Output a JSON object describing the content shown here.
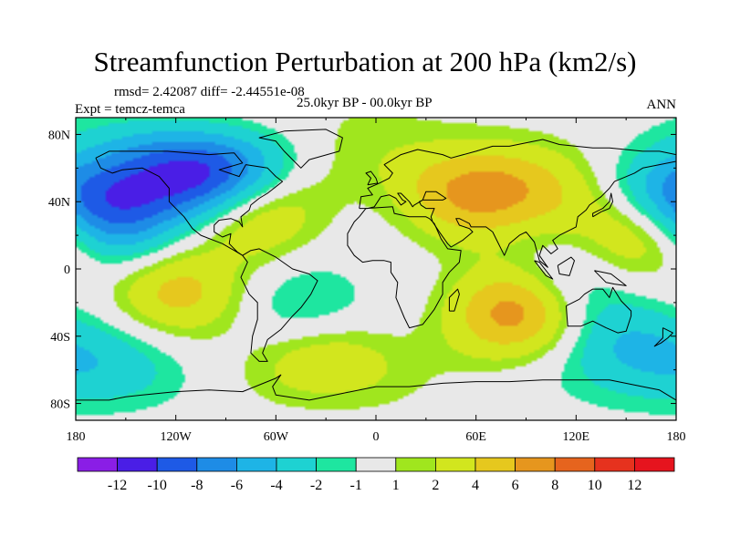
{
  "title": "Streamfunction Perturbation at 200 hPa (km2/s)",
  "stats": "rmsd= 2.42087 diff= -2.44551e-08",
  "experiment": "Expt = temcz-temca",
  "period": "25.0kyr BP - 00.0kyr BP",
  "season": "ANN",
  "axes": {
    "lat_labels": [
      "80N",
      "40N",
      "0",
      "40S",
      "80S"
    ],
    "lat_values": [
      80,
      40,
      0,
      -40,
      -80
    ],
    "lon_labels": [
      "180",
      "120W",
      "60W",
      "0",
      "60E",
      "120E",
      "180"
    ],
    "lon_values": [
      -180,
      -120,
      -60,
      0,
      60,
      120,
      180
    ],
    "lat_range": [
      -90,
      90
    ],
    "lon_range": [
      -180,
      180
    ]
  },
  "colorbar": {
    "labels": [
      "-12",
      "-10",
      "-8",
      "-6",
      "-4",
      "-2",
      "-1",
      "1",
      "2",
      "4",
      "6",
      "8",
      "10",
      "12"
    ],
    "colors": [
      "#8a1ee6",
      "#4a1ee6",
      "#1e5ae6",
      "#1e8ce6",
      "#1eb4e6",
      "#1ed2d2",
      "#1ee6a0",
      "#e8e8e8",
      "#a0e61e",
      "#d2e61e",
      "#e6c81e",
      "#e6961e",
      "#e6641e",
      "#e6321e",
      "#e6141e"
    ]
  },
  "field_features": [
    {
      "name": "north-america-low",
      "lon": -100,
      "lat": 56,
      "value": -11
    },
    {
      "name": "north-pacific-low",
      "lon": -155,
      "lat": 40,
      "value": -5
    },
    {
      "name": "west-pacific-low",
      "lon": 178,
      "lat": 42,
      "value": -5
    },
    {
      "name": "atlantic-high",
      "lon": -75,
      "lat": 34,
      "value": 5
    },
    {
      "name": "eurasia-high",
      "lon": 55,
      "lat": 45,
      "value": 6
    },
    {
      "name": "asia-high",
      "lon": 100,
      "lat": 45,
      "value": 3
    },
    {
      "name": "pacific-high",
      "lon": 160,
      "lat": 22,
      "value": 5
    },
    {
      "name": "arctic-high",
      "lon": -45,
      "lat": 78,
      "value": 2
    },
    {
      "name": "south-pacific-high",
      "lon": -120,
      "lat": -13,
      "value": 5
    },
    {
      "name": "indian-ocean-high",
      "lon": 85,
      "lat": -25,
      "value": 8
    },
    {
      "name": "south-atlantic-high",
      "lon": -30,
      "lat": -52,
      "value": 4
    },
    {
      "name": "south-atlantic-low",
      "lon": -40,
      "lat": -25,
      "value": -3
    },
    {
      "name": "west-australia-low",
      "lon": 145,
      "lat": -45,
      "value": -4
    },
    {
      "name": "east-pacific-low",
      "lon": -150,
      "lat": 22,
      "value": -3
    },
    {
      "name": "south-indian-low",
      "lon": 110,
      "lat": -10,
      "value": -3
    },
    {
      "name": "southern-ocean-low",
      "lon": -160,
      "lat": -55,
      "value": -3
    }
  ],
  "coastlines": [
    {
      "name": "north-america-coast",
      "points": [
        [
          -168,
          66
        ],
        [
          -160,
          70
        ],
        [
          -140,
          70
        ],
        [
          -125,
          70
        ],
        [
          -100,
          68
        ],
        [
          -85,
          69
        ],
        [
          -80,
          63
        ],
        [
          -94,
          59
        ],
        [
          -82,
          55
        ],
        [
          -78,
          62
        ],
        [
          -65,
          60
        ],
        [
          -60,
          55
        ],
        [
          -56,
          52
        ],
        [
          -65,
          45
        ],
        [
          -70,
          42
        ],
        [
          -75,
          38
        ],
        [
          -76,
          35
        ],
        [
          -81,
          31
        ],
        [
          -80,
          25
        ],
        [
          -82,
          28
        ],
        [
          -87,
          30
        ],
        [
          -94,
          29
        ],
        [
          -97,
          26
        ],
        [
          -97,
          22
        ],
        [
          -92,
          19
        ],
        [
          -87,
          21
        ],
        [
          -88,
          15
        ],
        [
          -83,
          10
        ],
        [
          -80,
          8
        ],
        [
          -85,
          11
        ],
        [
          -92,
          15
        ],
        [
          -105,
          20
        ],
        [
          -110,
          24
        ],
        [
          -115,
          31
        ],
        [
          -118,
          34
        ],
        [
          -124,
          40
        ],
        [
          -124,
          48
        ],
        [
          -130,
          55
        ],
        [
          -140,
          60
        ],
        [
          -152,
          59
        ],
        [
          -158,
          57
        ],
        [
          -165,
          60
        ],
        [
          -168,
          66
        ]
      ]
    },
    {
      "name": "greenland-coast",
      "points": [
        [
          -55,
          82
        ],
        [
          -30,
          83
        ],
        [
          -20,
          78
        ],
        [
          -22,
          70
        ],
        [
          -40,
          65
        ],
        [
          -45,
          60
        ],
        [
          -50,
          65
        ],
        [
          -55,
          70
        ],
        [
          -60,
          76
        ],
        [
          -70,
          78
        ],
        [
          -55,
          82
        ]
      ]
    },
    {
      "name": "south-america-coast",
      "points": [
        [
          -80,
          8
        ],
        [
          -77,
          4
        ],
        [
          -81,
          -5
        ],
        [
          -76,
          -15
        ],
        [
          -71,
          -20
        ],
        [
          -71,
          -30
        ],
        [
          -74,
          -40
        ],
        [
          -75,
          -50
        ],
        [
          -70,
          -55
        ],
        [
          -65,
          -55
        ],
        [
          -68,
          -50
        ],
        [
          -65,
          -42
        ],
        [
          -57,
          -36
        ],
        [
          -50,
          -28
        ],
        [
          -45,
          -23
        ],
        [
          -39,
          -15
        ],
        [
          -35,
          -7
        ],
        [
          -40,
          -3
        ],
        [
          -50,
          0
        ],
        [
          -60,
          7
        ],
        [
          -70,
          12
        ],
        [
          -75,
          11
        ],
        [
          -80,
          8
        ]
      ]
    },
    {
      "name": "eurasia-coast",
      "points": [
        [
          -10,
          36
        ],
        [
          -9,
          43
        ],
        [
          -2,
          44
        ],
        [
          -5,
          48
        ],
        [
          2,
          51
        ],
        [
          8,
          54
        ],
        [
          10,
          57
        ],
        [
          5,
          62
        ],
        [
          15,
          68
        ],
        [
          25,
          71
        ],
        [
          40,
          68
        ],
        [
          45,
          66
        ],
        [
          60,
          70
        ],
        [
          70,
          73
        ],
        [
          80,
          73
        ],
        [
          100,
          77
        ],
        [
          110,
          74
        ],
        [
          130,
          72
        ],
        [
          140,
          72
        ],
        [
          160,
          70
        ],
        [
          170,
          70
        ],
        [
          180,
          68
        ],
        [
          180,
          64
        ],
        [
          170,
          62
        ],
        [
          160,
          60
        ],
        [
          155,
          57
        ],
        [
          143,
          52
        ],
        [
          140,
          48
        ],
        [
          135,
          43
        ],
        [
          128,
          38
        ],
        [
          126,
          35
        ],
        [
          121,
          31
        ],
        [
          120,
          25
        ],
        [
          110,
          20
        ],
        [
          106,
          17
        ],
        [
          109,
          12
        ],
        [
          105,
          9
        ],
        [
          100,
          14
        ],
        [
          98,
          8
        ],
        [
          103,
          1
        ],
        [
          98,
          5
        ],
        [
          95,
          16
        ],
        [
          90,
          22
        ],
        [
          86,
          20
        ],
        [
          80,
          15
        ],
        [
          77,
          8
        ],
        [
          73,
          16
        ],
        [
          70,
          22
        ],
        [
          66,
          25
        ],
        [
          57,
          25
        ],
        [
          56,
          27
        ],
        [
          50,
          30
        ],
        [
          48,
          30
        ],
        [
          50,
          26
        ],
        [
          56,
          24
        ],
        [
          58,
          22
        ],
        [
          52,
          17
        ],
        [
          45,
          13
        ],
        [
          43,
          15
        ],
        [
          38,
          22
        ],
        [
          34,
          28
        ],
        [
          33,
          31
        ],
        [
          35,
          36
        ],
        [
          30,
          36
        ],
        [
          27,
          38
        ],
        [
          26,
          40
        ],
        [
          28,
          41
        ],
        [
          36,
          41
        ],
        [
          40,
          41
        ],
        [
          42,
          42
        ],
        [
          36,
          46
        ],
        [
          30,
          46
        ],
        [
          28,
          41
        ],
        [
          23,
          38
        ],
        [
          22,
          37
        ],
        [
          20,
          40
        ],
        [
          15,
          45
        ],
        [
          13,
          45
        ],
        [
          16,
          41
        ],
        [
          18,
          40
        ],
        [
          15,
          38
        ],
        [
          12,
          42
        ],
        [
          8,
          44
        ],
        [
          3,
          43
        ],
        [
          -1,
          37
        ],
        [
          -5,
          36
        ],
        [
          -10,
          36
        ]
      ]
    },
    {
      "name": "africa-coast",
      "points": [
        [
          -6,
          36
        ],
        [
          10,
          37
        ],
        [
          11,
          33
        ],
        [
          20,
          31
        ],
        [
          30,
          31
        ],
        [
          32,
          30
        ],
        [
          35,
          27
        ],
        [
          39,
          18
        ],
        [
          43,
          12
        ],
        [
          51,
          11
        ],
        [
          50,
          4
        ],
        [
          44,
          -2
        ],
        [
          40,
          -8
        ],
        [
          40,
          -15
        ],
        [
          35,
          -24
        ],
        [
          32,
          -28
        ],
        [
          28,
          -33
        ],
        [
          20,
          -35
        ],
        [
          17,
          -29
        ],
        [
          12,
          -17
        ],
        [
          13,
          -8
        ],
        [
          9,
          -2
        ],
        [
          9,
          4
        ],
        [
          5,
          5
        ],
        [
          -2,
          5
        ],
        [
          -8,
          4
        ],
        [
          -13,
          8
        ],
        [
          -17,
          14
        ],
        [
          -17,
          21
        ],
        [
          -13,
          28
        ],
        [
          -10,
          31
        ],
        [
          -6,
          36
        ]
      ]
    },
    {
      "name": "australia-coast",
      "points": [
        [
          114,
          -22
        ],
        [
          115,
          -34
        ],
        [
          123,
          -34
        ],
        [
          130,
          -31
        ],
        [
          138,
          -35
        ],
        [
          145,
          -38
        ],
        [
          150,
          -37
        ],
        [
          153,
          -28
        ],
        [
          153,
          -25
        ],
        [
          147,
          -19
        ],
        [
          142,
          -11
        ],
        [
          140,
          -17
        ],
        [
          136,
          -12
        ],
        [
          130,
          -12
        ],
        [
          125,
          -15
        ],
        [
          122,
          -18
        ],
        [
          114,
          -22
        ]
      ]
    },
    {
      "name": "antarctica-coast",
      "points": [
        [
          -180,
          -78
        ],
        [
          -160,
          -78
        ],
        [
          -150,
          -76
        ],
        [
          -140,
          -75
        ],
        [
          -120,
          -73
        ],
        [
          -100,
          -72
        ],
        [
          -80,
          -73
        ],
        [
          -60,
          -65
        ],
        [
          -57,
          -63
        ],
        [
          -62,
          -70
        ],
        [
          -60,
          -75
        ],
        [
          -40,
          -78
        ],
        [
          -20,
          -74
        ],
        [
          0,
          -70
        ],
        [
          20,
          -70
        ],
        [
          40,
          -68
        ],
        [
          60,
          -67
        ],
        [
          80,
          -67
        ],
        [
          100,
          -66
        ],
        [
          120,
          -66
        ],
        [
          140,
          -66
        ],
        [
          160,
          -70
        ],
        [
          170,
          -72
        ],
        [
          180,
          -78
        ]
      ]
    },
    {
      "name": "madagascar-coast",
      "points": [
        [
          44,
          -25
        ],
        [
          47,
          -25
        ],
        [
          50,
          -15
        ],
        [
          49,
          -12
        ],
        [
          44,
          -17
        ],
        [
          44,
          -25
        ]
      ]
    },
    {
      "name": "uk-coast",
      "points": [
        [
          -5,
          50
        ],
        [
          1,
          51
        ],
        [
          0,
          54
        ],
        [
          -3,
          58
        ],
        [
          -6,
          57
        ],
        [
          -3,
          54
        ],
        [
          -5,
          50
        ]
      ]
    },
    {
      "name": "japan-coast",
      "points": [
        [
          130,
          31
        ],
        [
          135,
          34
        ],
        [
          140,
          36
        ],
        [
          142,
          40
        ],
        [
          141,
          45
        ],
        [
          140,
          40
        ],
        [
          136,
          36
        ],
        [
          130,
          33
        ],
        [
          130,
          31
        ]
      ]
    },
    {
      "name": "borneo-coast",
      "points": [
        [
          109,
          2
        ],
        [
          117,
          7
        ],
        [
          119,
          5
        ],
        [
          116,
          -4
        ],
        [
          110,
          -3
        ],
        [
          109,
          2
        ]
      ]
    },
    {
      "name": "sumatra-coast",
      "points": [
        [
          95,
          5
        ],
        [
          98,
          4
        ],
        [
          106,
          -6
        ],
        [
          102,
          -4
        ],
        [
          95,
          5
        ]
      ]
    },
    {
      "name": "new-guinea-coast",
      "points": [
        [
          131,
          -1
        ],
        [
          141,
          -3
        ],
        [
          150,
          -10
        ],
        [
          143,
          -9
        ],
        [
          138,
          -8
        ],
        [
          131,
          -1
        ]
      ]
    },
    {
      "name": "new-zealand-coast",
      "points": [
        [
          172,
          -35
        ],
        [
          178,
          -38
        ],
        [
          175,
          -41
        ],
        [
          171,
          -44
        ],
        [
          167,
          -46
        ],
        [
          172,
          -41
        ],
        [
          172,
          -35
        ]
      ]
    }
  ]
}
